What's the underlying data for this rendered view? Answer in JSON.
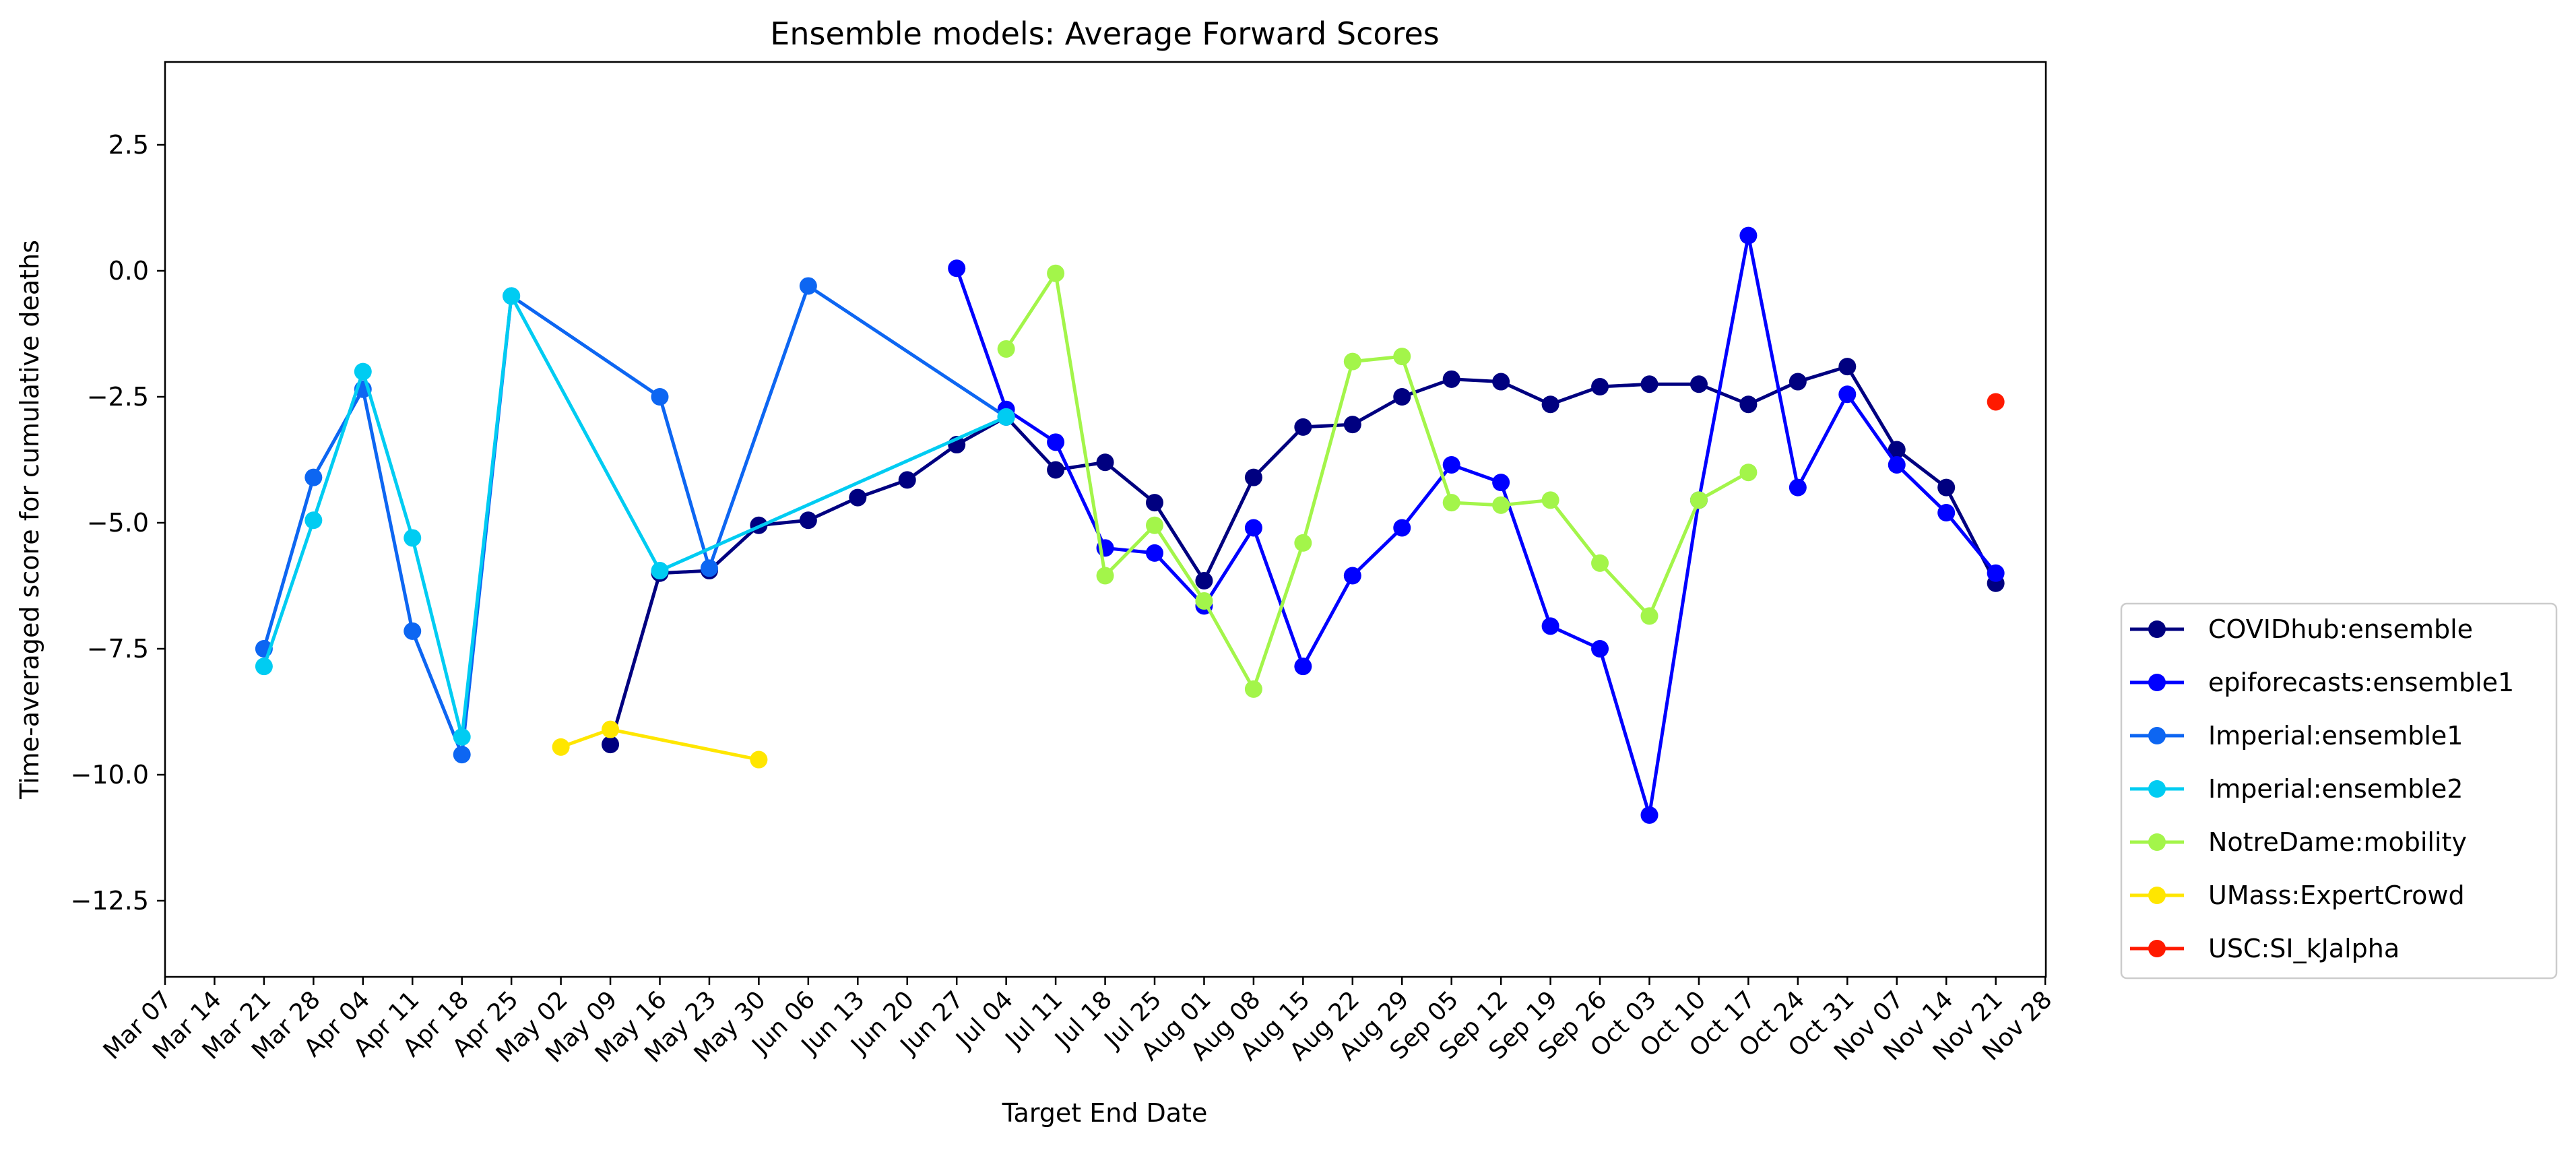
{
  "chart_data": {
    "type": "line",
    "title": "Ensemble models: Average Forward Scores",
    "xlabel": "Target End Date",
    "ylabel": "Time-averaged score for cumulative deaths",
    "ylim": [
      -14.7,
      3.6
    ],
    "y_ticks": [
      2.5,
      0.0,
      -2.5,
      -5.0,
      -7.5,
      -10.0,
      -12.5
    ],
    "y_tick_labels": [
      "2.5",
      "0.0",
      "−2.5",
      "−5.0",
      "−7.5",
      "−10.0",
      "−12.5"
    ],
    "categories": [
      "Mar 07",
      "Mar 14",
      "Mar 21",
      "Mar 28",
      "Apr 04",
      "Apr 11",
      "Apr 18",
      "Apr 25",
      "May 02",
      "May 09",
      "May 16",
      "May 23",
      "May 30",
      "Jun 06",
      "Jun 13",
      "Jun 20",
      "Jun 27",
      "Jul 04",
      "Jul 11",
      "Jul 18",
      "Jul 25",
      "Aug 01",
      "Aug 08",
      "Aug 15",
      "Aug 22",
      "Aug 29",
      "Sep 05",
      "Sep 12",
      "Sep 19",
      "Sep 26",
      "Oct 03",
      "Oct 10",
      "Oct 17",
      "Oct 24",
      "Oct 31",
      "Nov 07",
      "Nov 14",
      "Nov 21",
      "Nov 28"
    ],
    "legend_position": "right",
    "series": [
      {
        "name": "COVIDhub:ensemble",
        "color": "#000080",
        "points": [
          [
            "May 09",
            -9.4
          ],
          [
            "May 16",
            -6.0
          ],
          [
            "May 23",
            -5.95
          ],
          [
            "May 30",
            -5.05
          ],
          [
            "Jun 06",
            -4.95
          ],
          [
            "Jun 13",
            -4.5
          ],
          [
            "Jun 20",
            -4.15
          ],
          [
            "Jun 27",
            -3.45
          ],
          [
            "Jul 04",
            -2.9
          ],
          [
            "Jul 11",
            -3.95
          ],
          [
            "Jul 18",
            -3.8
          ],
          [
            "Jul 25",
            -4.6
          ],
          [
            "Aug 01",
            -6.15
          ],
          [
            "Aug 08",
            -4.1
          ],
          [
            "Aug 15",
            -3.1
          ],
          [
            "Aug 22",
            -3.05
          ],
          [
            "Aug 29",
            -2.5
          ],
          [
            "Sep 05",
            -2.15
          ],
          [
            "Sep 12",
            -2.2
          ],
          [
            "Sep 19",
            -2.65
          ],
          [
            "Sep 26",
            -2.3
          ],
          [
            "Oct 03",
            -2.25
          ],
          [
            "Oct 10",
            -2.25
          ],
          [
            "Oct 17",
            -2.65
          ],
          [
            "Oct 24",
            -2.2
          ],
          [
            "Oct 31",
            -1.9
          ],
          [
            "Nov 07",
            -3.55
          ],
          [
            "Nov 14",
            -4.3
          ],
          [
            "Nov 21",
            -6.2
          ]
        ]
      },
      {
        "name": "epiforecasts:ensemble1",
        "color": "#0000ff",
        "points": [
          [
            "Jun 27",
            0.05
          ],
          [
            "Jul 04",
            -2.75
          ],
          [
            "Jul 11",
            -3.4
          ],
          [
            "Jul 18",
            -5.5
          ],
          [
            "Jul 25",
            -5.6
          ],
          [
            "Aug 01",
            -6.65
          ],
          [
            "Aug 08",
            -5.1
          ],
          [
            "Aug 15",
            -7.85
          ],
          [
            "Aug 22",
            -6.05
          ],
          [
            "Aug 29",
            -5.1
          ],
          [
            "Sep 05",
            -3.85
          ],
          [
            "Sep 12",
            -4.2
          ],
          [
            "Sep 19",
            -7.05
          ],
          [
            "Sep 26",
            -7.5
          ],
          [
            "Oct 03",
            -10.8
          ],
          [
            "Oct 10",
            -4.55
          ],
          [
            "Oct 17",
            0.7
          ],
          [
            "Oct 24",
            -4.3
          ],
          [
            "Oct 31",
            -2.45
          ],
          [
            "Nov 07",
            -3.85
          ],
          [
            "Nov 14",
            -4.8
          ],
          [
            "Nov 21",
            -6.0
          ]
        ]
      },
      {
        "name": "Imperial:ensemble1",
        "color": "#0d66f2",
        "points": [
          [
            "Mar 21",
            -7.5
          ],
          [
            "Mar 28",
            -4.1
          ],
          [
            "Apr 04",
            -2.35
          ],
          [
            "Apr 11",
            -7.15
          ],
          [
            "Apr 18",
            -9.6
          ],
          [
            "Apr 25",
            -0.5
          ],
          [
            "May 16",
            -2.5
          ],
          [
            "May 23",
            -5.9
          ],
          [
            "Jun 06",
            -0.3
          ],
          [
            "Jul 04",
            -2.9
          ]
        ]
      },
      {
        "name": "Imperial:ensemble2",
        "color": "#00ccf2",
        "points": [
          [
            "Mar 21",
            -7.85
          ],
          [
            "Mar 28",
            -4.95
          ],
          [
            "Apr 04",
            -2.0
          ],
          [
            "Apr 11",
            -5.3
          ],
          [
            "Apr 18",
            -9.25
          ],
          [
            "Apr 25",
            -0.5
          ],
          [
            "May 16",
            -5.95
          ],
          [
            "Jul 04",
            -2.9
          ]
        ]
      },
      {
        "name": "NotreDame:mobility",
        "color": "#a3f54a",
        "points": [
          [
            "Jul 04",
            -1.55
          ],
          [
            "Jul 11",
            -0.05
          ],
          [
            "Jul 18",
            -6.05
          ],
          [
            "Jul 25",
            -5.05
          ],
          [
            "Aug 01",
            -6.55
          ],
          [
            "Aug 08",
            -8.3
          ],
          [
            "Aug 15",
            -5.4
          ],
          [
            "Aug 22",
            -1.8
          ],
          [
            "Aug 29",
            -1.7
          ],
          [
            "Sep 05",
            -4.6
          ],
          [
            "Sep 12",
            -4.65
          ],
          [
            "Sep 19",
            -4.55
          ],
          [
            "Sep 26",
            -5.8
          ],
          [
            "Oct 03",
            -6.85
          ],
          [
            "Oct 10",
            -4.55
          ],
          [
            "Oct 17",
            -4.0
          ]
        ]
      },
      {
        "name": "UMass:ExpertCrowd",
        "color": "#ffe600",
        "points": [
          [
            "May 02",
            -9.45
          ],
          [
            "May 09",
            -9.1
          ],
          [
            "May 30",
            -9.7
          ]
        ]
      },
      {
        "name": "USC:SI_kJalpha",
        "color": "#ff1a00",
        "points": [
          [
            "Nov 21",
            -2.6
          ]
        ]
      }
    ]
  }
}
